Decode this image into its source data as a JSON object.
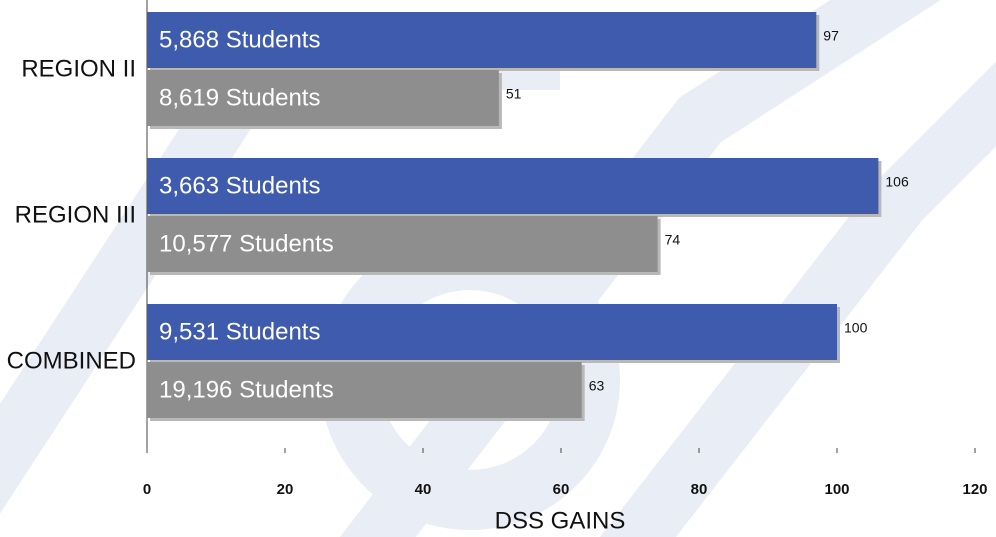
{
  "chart_data": {
    "type": "hbar",
    "categories": [
      "REGION II",
      "REGION III",
      "COMBINED"
    ],
    "series": [
      {
        "color": "#3f5bad",
        "values": [
          97,
          106,
          100
        ],
        "inner_labels": [
          "5,868 Students",
          "3,663 Students",
          "9,531 Students"
        ]
      },
      {
        "color": "#8e8e8e",
        "values": [
          51,
          74,
          63
        ],
        "inner_labels": [
          "8,619 Students",
          "10,577 Students",
          "19,196 Students"
        ]
      }
    ],
    "xlim": [
      0,
      120
    ],
    "xticks": [
      0,
      20,
      40,
      60,
      80,
      100,
      120
    ],
    "xlabel": "DSS GAINS"
  }
}
